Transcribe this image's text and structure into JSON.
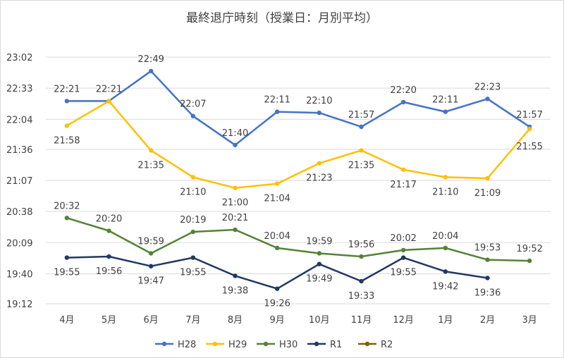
{
  "chart_data": {
    "type": "line",
    "title": "最終退庁時刻（授業日：月別平均）",
    "xlabel": "",
    "ylabel": "",
    "categories": [
      "4月",
      "5月",
      "6月",
      "7月",
      "8月",
      "9月",
      "10月",
      "11月",
      "12月",
      "1月",
      "2月",
      "3月"
    ],
    "y_ticks": [
      "19:12",
      "19:40",
      "20:09",
      "20:38",
      "21:07",
      "21:36",
      "22:04",
      "22:33",
      "23:02"
    ],
    "ylim_minutes": [
      1152,
      1382
    ],
    "grid": "horizontal",
    "legend_position": "bottom",
    "series": [
      {
        "name": "H28",
        "color": "#4472c4",
        "values": [
          "22:21",
          "22:21",
          "22:49",
          "22:07",
          "21:40",
          "22:11",
          "22:10",
          "21:57",
          "22:20",
          "22:11",
          "22:23",
          "21:57"
        ],
        "labels": [
          "22:21",
          "22:21",
          "22:49",
          "22:07",
          "21:40",
          "22:11",
          "22:10",
          "21:57",
          "22:20",
          "22:11",
          "22:23",
          "21:57"
        ]
      },
      {
        "name": "H29",
        "color": "#ffc000",
        "values": [
          "21:58",
          "22:21",
          "21:35",
          "21:10",
          "21:00",
          "21:04",
          "21:23",
          "21:35",
          "21:17",
          "21:10",
          "21:09",
          "21:55"
        ],
        "labels": [
          "21:58",
          "",
          "21:35",
          "21:10",
          "21:00",
          "21:04",
          "21:23",
          "21:35",
          "21:17",
          "21:10",
          "21:09",
          "21:55"
        ]
      },
      {
        "name": "H30",
        "color": "#548235",
        "values": [
          "20:32",
          "20:20",
          "19:59",
          "20:19",
          "20:21",
          "20:04",
          "19:59",
          "19:56",
          "20:02",
          "20:04",
          "19:53",
          "19:52"
        ],
        "labels": [
          "20:32",
          "20:20",
          "19:59",
          "20:19",
          "20:21",
          "20:04",
          "19:59",
          "19:56",
          "20:02",
          "20:04",
          "19:53",
          "19:52"
        ]
      },
      {
        "name": "R1",
        "color": "#203864",
        "values": [
          "19:55",
          "19:56",
          "19:47",
          "19:55",
          "19:38",
          "19:26",
          "19:49",
          "19:33",
          "19:55",
          "19:42",
          "19:36",
          null
        ],
        "labels": [
          "19:55",
          "19:56",
          "19:47",
          "19:55",
          "19:38",
          "19:26",
          "19:49",
          "19:33",
          "19:55",
          "19:42",
          "19:36",
          ""
        ]
      },
      {
        "name": "R2",
        "color": "#7f6000",
        "values": [
          null,
          null,
          null,
          null,
          null,
          null,
          null,
          null,
          null,
          null,
          null,
          null
        ],
        "labels": []
      }
    ]
  }
}
